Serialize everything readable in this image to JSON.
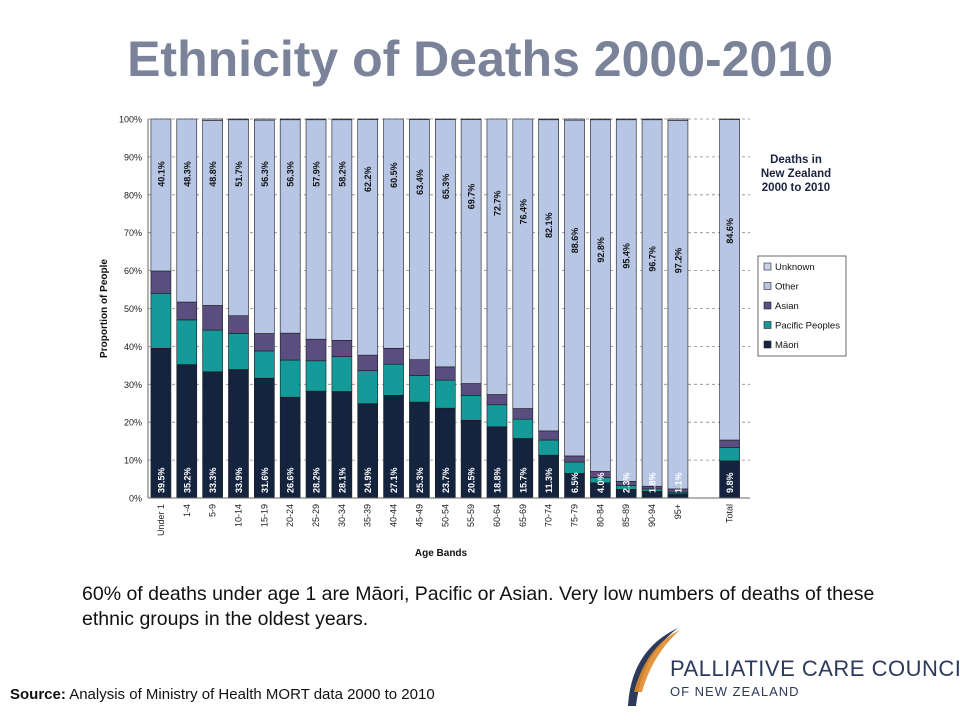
{
  "slide": {
    "title": "Ethnicity of Deaths 2000-2010",
    "caption": "60% of deaths under age 1 are Māori, Pacific or Asian. Very low numbers of deaths of these ethnic groups in the oldest years.",
    "source_label": "Source:",
    "source_text": " Analysis of Ministry of Health MORT data 2000 to 2010",
    "logo_line1": "PALLIATIVE CARE COUNCIL",
    "logo_line2": "OF NEW ZEALAND"
  },
  "colors": {
    "maori": "#14243f",
    "pacific": "#149a99",
    "asian": "#5a4d80",
    "other": "#b7c6e5",
    "unknown": "#c7d3ec",
    "title": "#7a8399",
    "logo_navy": "#2c3a5c",
    "logo_orange": "#e08a2a"
  },
  "chart_data": {
    "type": "bar",
    "stacked": true,
    "title": "Deaths in New Zealand 2000 to 2010",
    "xlabel": "Age Bands",
    "ylabel": "Proportion of People",
    "ylim": [
      0,
      100
    ],
    "y_ticks": [
      "0%",
      "10%",
      "20%",
      "30%",
      "40%",
      "50%",
      "60%",
      "70%",
      "80%",
      "90%",
      "100%"
    ],
    "grid": true,
    "legend_position": "right",
    "legend": [
      "Unknown",
      "Other",
      "Asian",
      "Pacific Peoples",
      "Māori"
    ],
    "categories": [
      "Under 1",
      "1-4",
      "5-9",
      "10-14",
      "15-19",
      "20-24",
      "25-29",
      "30-34",
      "35-39",
      "40-44",
      "45-49",
      "50-54",
      "55-59",
      "60-64",
      "65-69",
      "70-74",
      "75-79",
      "80-84",
      "85-89",
      "90-94",
      "95+",
      "",
      "Total"
    ],
    "series": [
      {
        "name": "Māori",
        "values": [
          39.5,
          35.2,
          33.3,
          33.9,
          31.6,
          26.6,
          28.2,
          28.1,
          24.9,
          27.1,
          25.3,
          23.7,
          20.5,
          18.8,
          15.7,
          11.3,
          6.5,
          4.0,
          2.3,
          1.8,
          1.1,
          null,
          9.8
        ]
      },
      {
        "name": "Pacific Peoples",
        "values": [
          14.5,
          11.8,
          11.0,
          9.5,
          7.2,
          9.8,
          8.0,
          9.2,
          8.7,
          8.2,
          7.0,
          7.4,
          6.5,
          5.8,
          5.1,
          4.0,
          3.0,
          1.4,
          1.0,
          0.6,
          0.4,
          null,
          3.5
        ]
      },
      {
        "name": "Asian",
        "values": [
          5.9,
          4.7,
          6.5,
          4.7,
          4.6,
          7.1,
          5.7,
          4.3,
          4.1,
          4.2,
          4.2,
          3.5,
          3.2,
          2.7,
          2.8,
          2.4,
          1.6,
          1.6,
          1.1,
          0.7,
          0.9,
          null,
          2.0
        ]
      },
      {
        "name": "Other",
        "values": [
          40.1,
          48.3,
          48.8,
          51.7,
          56.3,
          56.3,
          57.9,
          58.2,
          62.2,
          60.5,
          63.4,
          65.3,
          69.7,
          72.7,
          76.4,
          82.1,
          88.6,
          92.8,
          95.4,
          96.7,
          97.2,
          null,
          84.6
        ]
      },
      {
        "name": "Unknown",
        "values": [
          0,
          0,
          0.4,
          0.2,
          0.3,
          0.2,
          0.2,
          0.2,
          0.1,
          0,
          0.1,
          0.1,
          0.1,
          0,
          0,
          0.2,
          0.3,
          0.2,
          0.2,
          0.2,
          0.4,
          null,
          0.1
        ]
      }
    ],
    "maori_labels": [
      "39.5%",
      "35.2%",
      "33.3%",
      "33.9%",
      "31.6%",
      "26.6%",
      "28.2%",
      "28.1%",
      "24.9%",
      "27.1%",
      "25.3%",
      "23.7%",
      "20.5%",
      "18.8%",
      "15.7%",
      "11.3%",
      "6.5%",
      "4.0%",
      "2.3%",
      "1.8%",
      "1.1%",
      "",
      "9.8%"
    ],
    "other_labels": [
      "40.1%",
      "48.3%",
      "48.8%",
      "51.7%",
      "56.3%",
      "56.3%",
      "57.9%",
      "58.2%",
      "62.2%",
      "60.5%",
      "63.4%",
      "65.3%",
      "69.7%",
      "72.7%",
      "76.4%",
      "82.1%",
      "88.6%",
      "92.8%",
      "95.4%",
      "96.7%",
      "97.2%",
      "",
      "84.6%"
    ]
  }
}
